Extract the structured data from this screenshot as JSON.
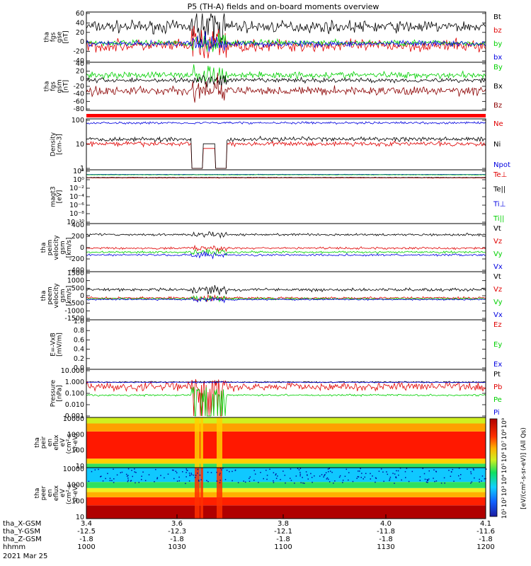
{
  "title": "P5 (TH-A) fields and on-board moments overview",
  "colors": {
    "black": "#000000",
    "red": "#e00000",
    "green": "#00d000",
    "blue": "#0000e0",
    "darkred": "#8b0000"
  },
  "chart_data": [
    {
      "type": "line",
      "ylabel": [
        "tha",
        "fgs",
        "gse",
        "[nT]"
      ],
      "yticks": [
        "60",
        "40",
        "20",
        "0",
        "-20",
        "-40"
      ],
      "ylim": [
        -40,
        60
      ],
      "series": [
        {
          "name": "Bt",
          "color": "black",
          "base": 32,
          "noise": 10
        },
        {
          "name": "bz",
          "color": "red",
          "base": -8,
          "noise": 10
        },
        {
          "name": "by",
          "color": "green",
          "base": -2,
          "noise": 5
        },
        {
          "name": "bx",
          "color": "blue",
          "base": -4,
          "noise": 5
        }
      ]
    },
    {
      "type": "line",
      "ylabel": [
        "tha",
        "fgs",
        "gsm",
        "[nT]"
      ],
      "yticks": [
        "40",
        "20",
        "0",
        "-20",
        "-40",
        "-60",
        "-80"
      ],
      "ylim": [
        -80,
        40
      ],
      "series": [
        {
          "name": "By",
          "color": "green",
          "base": 10,
          "noise": 7
        },
        {
          "name": "Bx",
          "color": "black",
          "base": -4,
          "noise": 5
        },
        {
          "name": "Bz",
          "color": "darkred",
          "base": -32,
          "noise": 9
        }
      ]
    },
    {
      "type": "line",
      "ylabel": [
        "Density",
        "[cm-3]"
      ],
      "yticks": [
        "100",
        "10",
        "1"
      ],
      "log": true,
      "ylim": [
        1,
        200
      ],
      "series": [
        {
          "name": "Ne",
          "color": "red",
          "base": 15,
          "noise": 0.1
        },
        {
          "name": "Ni",
          "color": "black",
          "base": 25,
          "noise": 0.1
        },
        {
          "name": "Npot",
          "color": "blue",
          "base": 150,
          "noise": 0.05
        }
      ]
    },
    {
      "type": "line",
      "ylabel": [
        "magt3",
        "[eV]"
      ],
      "yticks": [
        "10²",
        "10⁰",
        "10⁻²",
        "10⁻⁴",
        "10⁻⁶",
        "10⁻⁸",
        "10⁻¹⁰"
      ],
      "log": true,
      "ylim": [
        1e-10,
        1000.0
      ],
      "series": [
        {
          "name": "Te⊥",
          "color": "red",
          "base": 20,
          "noise": 0.05
        },
        {
          "name": "Te||",
          "color": "black",
          "base": 25,
          "noise": 0.05
        },
        {
          "name": "Ti⊥",
          "color": "blue",
          "base": 150,
          "noise": 0.05
        },
        {
          "name": "Ti||",
          "color": "green",
          "base": 120,
          "noise": 0.05
        }
      ]
    },
    {
      "type": "line",
      "ylabel": [
        "tha",
        "peim",
        "velocity",
        "gsm",
        "[km/s]"
      ],
      "yticks": [
        "400",
        "200",
        "0",
        "-200",
        "-400"
      ],
      "ylim": [
        -400,
        400
      ],
      "series": [
        {
          "name": "Vt",
          "color": "black",
          "base": 230,
          "noise": 15
        },
        {
          "name": "Vz",
          "color": "red",
          "base": -10,
          "noise": 15
        },
        {
          "name": "Vy",
          "color": "green",
          "base": -80,
          "noise": 15
        },
        {
          "name": "Vx",
          "color": "blue",
          "base": -130,
          "noise": 15
        }
      ]
    },
    {
      "type": "line",
      "ylabel": [
        "tha",
        "peem",
        "velocity",
        "gsm",
        "[km/s]"
      ],
      "yticks": [
        "1500",
        "1000",
        "500",
        "0",
        "-500",
        "-1000",
        "-1500"
      ],
      "ylim": [
        -1500,
        1500
      ],
      "series": [
        {
          "name": "Vt",
          "color": "black",
          "base": 400,
          "noise": 80
        },
        {
          "name": "Vz",
          "color": "red",
          "base": -150,
          "noise": 60
        },
        {
          "name": "Vy",
          "color": "green",
          "base": -200,
          "noise": 50
        },
        {
          "name": "Vx",
          "color": "blue",
          "base": -250,
          "noise": 40
        }
      ]
    },
    {
      "type": "line",
      "ylabel": [
        "E=-VxB",
        "[mV/m]"
      ],
      "yticks": [
        "1.0",
        "0.8",
        "0.6",
        "0.4",
        "0.2",
        "0.0"
      ],
      "ylim": [
        0,
        1
      ],
      "series": [
        {
          "name": "Ez",
          "color": "red"
        },
        {
          "name": "Ey",
          "color": "green"
        },
        {
          "name": "Ex",
          "color": "blue"
        }
      ]
    },
    {
      "type": "line",
      "ylabel": [
        "Pressure",
        "[nPa]"
      ],
      "yticks": [
        "10.000",
        "1.000",
        "0.100",
        "0.010",
        "0.001"
      ],
      "log": true,
      "ylim": [
        0.001,
        10
      ],
      "series": [
        {
          "name": "Pt",
          "color": "black",
          "base": 1,
          "noise": 0.05
        },
        {
          "name": "Pb",
          "color": "red",
          "base": 0.4,
          "noise": 0.35
        },
        {
          "name": "Pe",
          "color": "green",
          "base": 0.07,
          "noise": 0.08
        },
        {
          "name": "Pi",
          "color": "blue",
          "base": 0.95,
          "noise": 0.04
        }
      ]
    },
    {
      "type": "heatmap",
      "ylabel": [
        "tha",
        "peir",
        "en",
        "eflux",
        "eV",
        "(cm²-s-",
        "sr-eV)"
      ],
      "yticks": [
        "10000",
        "1000",
        "100",
        "10"
      ]
    },
    {
      "type": "heatmap",
      "ylabel": [
        "tha",
        "peer",
        "en",
        "eflux",
        "eV",
        "(cm²-s-",
        "sr-eV)"
      ],
      "yticks": [
        "10000",
        "1000",
        "100",
        "10"
      ]
    }
  ],
  "colorbar": {
    "label": "[eV/(cm²-s-sr-eV)] (All Qs)",
    "ticks": [
      "10⁹",
      "10⁸",
      "10⁷",
      "10⁶",
      "10⁵",
      "10⁴",
      "10³",
      "10²",
      "10¹"
    ]
  },
  "xaxis": {
    "rows": [
      {
        "label": "tha_X-GSM",
        "values": [
          "3.4",
          "3.6",
          "3.8",
          "4.0",
          "4.1"
        ]
      },
      {
        "label": "tha_Y-GSM",
        "values": [
          "-12.5",
          "-12.3",
          "-12.1",
          "-11.8",
          "-11.6"
        ]
      },
      {
        "label": "tha_Z-GSM",
        "values": [
          "-1.8",
          "-1.8",
          "-1.8",
          "-1.8",
          "-1.8"
        ]
      },
      {
        "label": "hhmm",
        "values": [
          "1000",
          "1030",
          "1100",
          "1130",
          "1200"
        ]
      }
    ],
    "date": "2021 Mar 25"
  }
}
